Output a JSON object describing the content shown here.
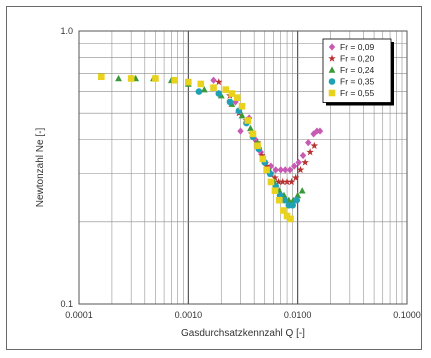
{
  "chart_data": {
    "type": "scatter",
    "title": "",
    "xlabel": "Gasdurchsatzkennzahl  Q  [-]",
    "ylabel": "Newtonzahl  Ne  [-]",
    "x_scale": "log",
    "y_scale": "log",
    "xlim": [
      0.0001,
      0.1
    ],
    "ylim": [
      0.1,
      1.0
    ],
    "x_ticks": [
      {
        "value": 0.0001,
        "label": "0.0001"
      },
      {
        "value": 0.001,
        "label": "0.0010"
      },
      {
        "value": 0.01,
        "label": "0.0100"
      },
      {
        "value": 0.1,
        "label": "0.1000"
      }
    ],
    "y_ticks": [
      {
        "value": 1.0,
        "label": "1.0"
      },
      {
        "value": 0.1,
        "label": "0.1"
      }
    ],
    "grid": true,
    "legend_position": "top-right",
    "series": [
      {
        "name": "Fr = 0,09",
        "color": "#c85ab4",
        "marker": "diamond",
        "points": [
          [
            0.0017,
            0.66
          ],
          [
            0.0027,
            0.55
          ],
          [
            0.003,
            0.43
          ],
          [
            0.0036,
            0.48
          ],
          [
            0.0041,
            0.4
          ],
          [
            0.0046,
            0.36
          ],
          [
            0.0051,
            0.33
          ],
          [
            0.0057,
            0.32
          ],
          [
            0.0063,
            0.31
          ],
          [
            0.007,
            0.31
          ],
          [
            0.0077,
            0.31
          ],
          [
            0.0085,
            0.31
          ],
          [
            0.0093,
            0.32
          ],
          [
            0.0102,
            0.33
          ],
          [
            0.0112,
            0.35
          ],
          [
            0.0125,
            0.39
          ],
          [
            0.014,
            0.42
          ],
          [
            0.015,
            0.43
          ],
          [
            0.016,
            0.43
          ]
        ]
      },
      {
        "name": "Fr = 0,20",
        "color": "#b83232",
        "marker": "star",
        "points": [
          [
            0.0019,
            0.65
          ],
          [
            0.0024,
            0.58
          ],
          [
            0.0029,
            0.5
          ],
          [
            0.0034,
            0.47
          ],
          [
            0.0038,
            0.42
          ],
          [
            0.0043,
            0.39
          ],
          [
            0.0047,
            0.35
          ],
          [
            0.0052,
            0.32
          ],
          [
            0.0057,
            0.3
          ],
          [
            0.0062,
            0.29
          ],
          [
            0.0067,
            0.28
          ],
          [
            0.0073,
            0.28
          ],
          [
            0.008,
            0.28
          ],
          [
            0.0088,
            0.28
          ],
          [
            0.0096,
            0.29
          ],
          [
            0.0106,
            0.31
          ],
          [
            0.0117,
            0.33
          ],
          [
            0.013,
            0.36
          ],
          [
            0.0142,
            0.38
          ]
        ]
      },
      {
        "name": "Fr = 0,24",
        "color": "#3a9a3a",
        "marker": "triangle",
        "points": [
          [
            0.00023,
            0.67
          ],
          [
            0.00033,
            0.67
          ],
          [
            0.00048,
            0.67
          ],
          [
            0.0007,
            0.66
          ],
          [
            0.001,
            0.64
          ],
          [
            0.0014,
            0.61
          ],
          [
            0.002,
            0.58
          ],
          [
            0.0025,
            0.54
          ],
          [
            0.0031,
            0.49
          ],
          [
            0.0037,
            0.44
          ],
          [
            0.0043,
            0.39
          ],
          [
            0.0049,
            0.34
          ],
          [
            0.0055,
            0.31
          ],
          [
            0.0061,
            0.28
          ],
          [
            0.0068,
            0.26
          ],
          [
            0.0075,
            0.25
          ],
          [
            0.0083,
            0.24
          ],
          [
            0.0091,
            0.24
          ],
          [
            0.01,
            0.25
          ],
          [
            0.011,
            0.26
          ]
        ]
      },
      {
        "name": "Fr = 0,35",
        "color": "#1fa0b4",
        "marker": "circle",
        "points": [
          [
            0.00125,
            0.6
          ],
          [
            0.0019,
            0.59
          ],
          [
            0.0024,
            0.55
          ],
          [
            0.0029,
            0.51
          ],
          [
            0.0034,
            0.46
          ],
          [
            0.0039,
            0.41
          ],
          [
            0.0044,
            0.37
          ],
          [
            0.005,
            0.33
          ],
          [
            0.0056,
            0.3
          ],
          [
            0.0063,
            0.27
          ],
          [
            0.0069,
            0.25
          ],
          [
            0.0076,
            0.24
          ],
          [
            0.0083,
            0.23
          ],
          [
            0.009,
            0.23
          ],
          [
            0.0098,
            0.24
          ]
        ]
      },
      {
        "name": "Fr = 0,55",
        "color": "#e8d21e",
        "marker": "square",
        "points": [
          [
            0.00016,
            0.68
          ],
          [
            0.0003,
            0.67
          ],
          [
            0.0005,
            0.67
          ],
          [
            0.00075,
            0.66
          ],
          [
            0.001,
            0.65
          ],
          [
            0.0013,
            0.64
          ],
          [
            0.0017,
            0.62
          ],
          [
            0.0022,
            0.61
          ],
          [
            0.0025,
            0.59
          ],
          [
            0.0028,
            0.57
          ],
          [
            0.0031,
            0.53
          ],
          [
            0.0035,
            0.47
          ],
          [
            0.0039,
            0.42
          ],
          [
            0.0043,
            0.38
          ],
          [
            0.0048,
            0.34
          ],
          [
            0.0052,
            0.31
          ],
          [
            0.0057,
            0.28
          ],
          [
            0.0062,
            0.26
          ],
          [
            0.0068,
            0.24
          ],
          [
            0.0074,
            0.22
          ],
          [
            0.008,
            0.21
          ],
          [
            0.0086,
            0.205
          ]
        ]
      }
    ]
  }
}
